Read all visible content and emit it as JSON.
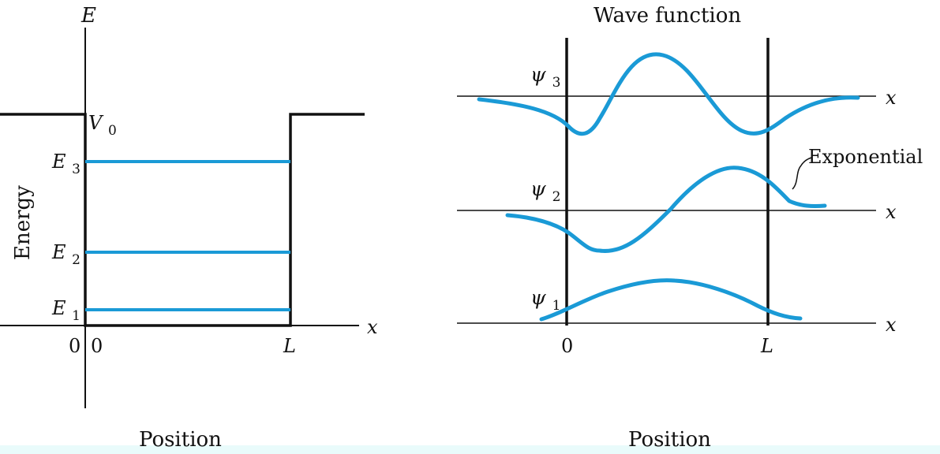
{
  "left_panel": {
    "y_axis_top_label": "E",
    "y_axis_title": "Energy",
    "x_axis_var": "x",
    "x_axis_title": "Position",
    "potential_label": "V",
    "potential_sub": "0",
    "levels": [
      {
        "base": "E",
        "sub": "3"
      },
      {
        "base": "E",
        "sub": "2"
      },
      {
        "base": "E",
        "sub": "1"
      }
    ],
    "tick_origin_left": "0",
    "tick_origin_right": "0",
    "tick_L": "L"
  },
  "right_panel": {
    "title": "Wave function",
    "x_axis_title": "Position",
    "x_var": "x",
    "psi_symbol": "ψ",
    "psi_subs": [
      "3",
      "2",
      "1"
    ],
    "tick_0": "0",
    "tick_L": "L",
    "annotation": "Exponential"
  },
  "colors": {
    "curve": "#1a9ad6",
    "ink": "#111111",
    "bottom_band": "#e9fbfb"
  }
}
